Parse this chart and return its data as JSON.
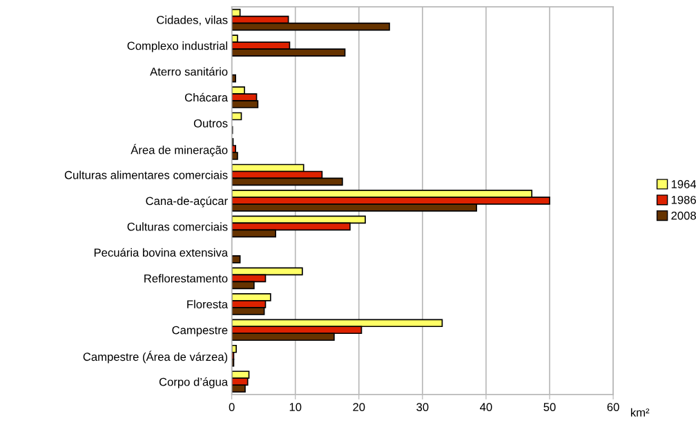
{
  "chart_data": {
    "type": "bar",
    "orientation": "horizontal",
    "xlabel": "km²",
    "categories": [
      "Cidades, vilas",
      "Complexo industrial",
      "Aterro sanitário",
      "Chácara",
      "Outros",
      "Área de mineração",
      "Culturas alimentares comerciais",
      "Cana-de-açúcar",
      "Culturas comerciais",
      "Pecuária bovina extensiva",
      "Reflorestamento",
      "Floresta",
      "Campestre",
      "Campestre (Área de várzea)",
      "Corpo d’água"
    ],
    "series": [
      {
        "name": "1964",
        "color": "#ffff66",
        "values": [
          1.3,
          0.9,
          0,
          2.0,
          1.5,
          0.2,
          11.3,
          47.2,
          21.0,
          0,
          11.1,
          6.1,
          33.1,
          0.7,
          2.7
        ]
      },
      {
        "name": "1986",
        "color": "#dd2200",
        "values": [
          8.9,
          9.1,
          0,
          3.9,
          0,
          0.6,
          14.2,
          50.0,
          18.6,
          0,
          5.3,
          5.3,
          20.4,
          0.3,
          2.5
        ]
      },
      {
        "name": "2008",
        "color": "#663300",
        "values": [
          24.8,
          17.8,
          0.6,
          4.1,
          0.1,
          0.9,
          17.4,
          38.5,
          6.9,
          1.3,
          3.5,
          5.1,
          16.1,
          0.3,
          2.1
        ]
      }
    ],
    "xlim": [
      0,
      60
    ],
    "xticks": [
      0,
      10,
      20,
      30,
      40,
      50,
      60
    ],
    "grid": "x",
    "legend": "right"
  }
}
